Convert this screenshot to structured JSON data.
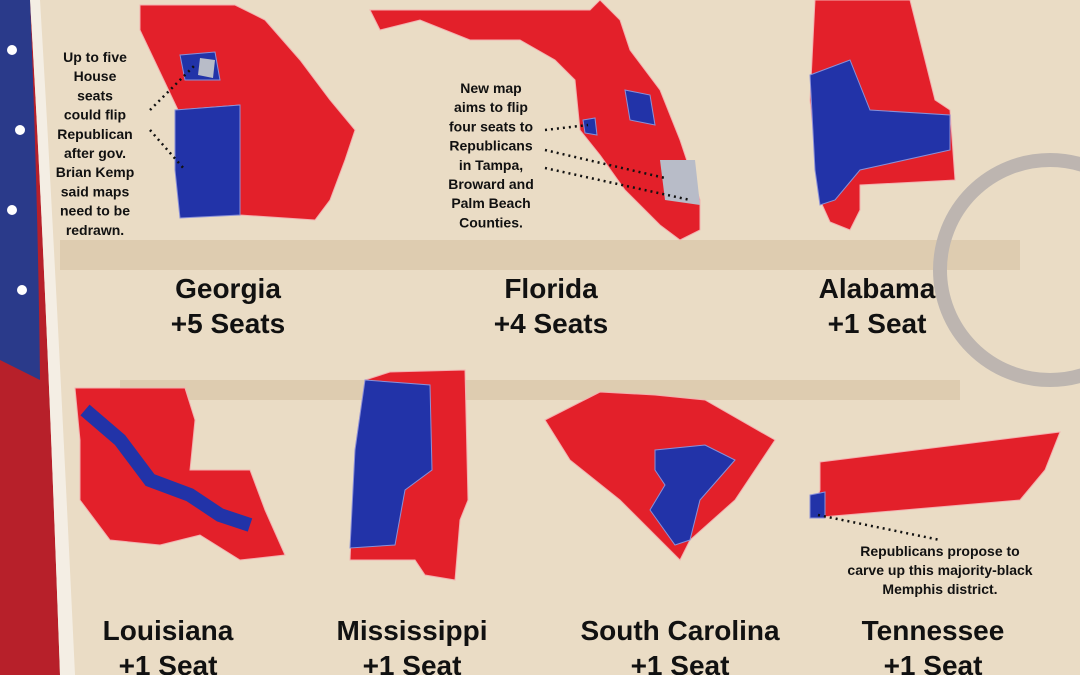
{
  "states": [
    {
      "name": "Georgia",
      "seats": "+5 Seats"
    },
    {
      "name": "Florida",
      "seats": "+4 Seats"
    },
    {
      "name": "Alabama",
      "seats": "+1 Seat"
    },
    {
      "name": "Louisiana",
      "seats": "+1 Seat"
    },
    {
      "name": "Mississippi",
      "seats": "+1 Seat"
    },
    {
      "name": "South Carolina",
      "seats": "+1 Seat"
    },
    {
      "name": "Tennessee",
      "seats": "+1 Seat"
    }
  ],
  "annotations": [
    {
      "lines": [
        "Up to five",
        "House",
        "seats",
        "could flip",
        "Republican",
        "after gov.",
        "Brian Kemp",
        "said maps",
        "need to be",
        "redrawn."
      ]
    },
    {
      "lines": [
        "New map",
        "aims to flip",
        "four seats to",
        "Republicans",
        "in Tampa,",
        "Broward and",
        "Palm Beach",
        "Counties."
      ]
    },
    {
      "lines": [
        "Republicans propose to",
        "carve up this majority-black",
        "Memphis district."
      ]
    }
  ]
}
